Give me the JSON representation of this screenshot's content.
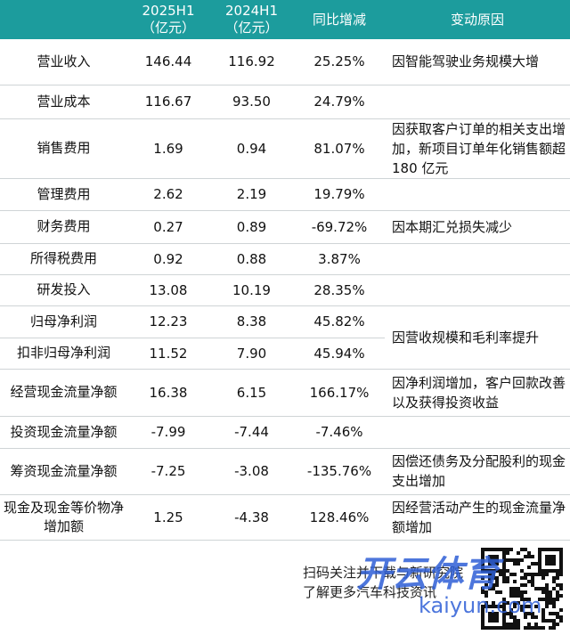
{
  "table": {
    "header": [
      [
        "2025H1",
        "（亿元）"
      ],
      [
        "2024H1",
        "（亿元）"
      ],
      [
        "同比增减"
      ],
      [
        "变动原因"
      ]
    ],
    "rows": [
      {
        "label": "营业收入",
        "h1_2025": "146.44",
        "h1_2024": "116.92",
        "yoy": "25.25%",
        "reason": "因智能驾驶业务规模大增"
      },
      {
        "label": "营业成本",
        "h1_2025": "116.67",
        "h1_2024": "93.50",
        "yoy": "24.79%"
      },
      {
        "label": "销售费用",
        "h1_2025": "1.69",
        "h1_2024": "0.94",
        "yoy": "81.07%",
        "reason": "因获取客户订单的相关支出增加，新项目订单年化销售额超180 亿元"
      },
      {
        "label": "管理费用",
        "h1_2025": "2.62",
        "h1_2024": "2.19",
        "yoy": "19.79%"
      },
      {
        "label": "财务费用",
        "h1_2025": "0.27",
        "h1_2024": "0.89",
        "yoy": "-69.72%",
        "reason": "因本期汇兑损失减少"
      },
      {
        "label": "所得税费用",
        "h1_2025": "0.92",
        "h1_2024": "0.88",
        "yoy": "3.87%"
      },
      {
        "label": "研发投入",
        "h1_2025": "13.08",
        "h1_2024": "10.19",
        "yoy": "28.35%"
      },
      {
        "label": "归母净利润",
        "h1_2025": "12.23",
        "h1_2024": "8.38",
        "yoy": "45.82%",
        "reason": "因营收规模和毛利率提升"
      },
      {
        "label": "扣非归母净利润",
        "h1_2025": "11.52",
        "h1_2024": "7.90",
        "yoy": "45.94%"
      },
      {
        "label": "经营现金流量净额",
        "h1_2025": "16.38",
        "h1_2024": "6.15",
        "yoy": "166.17%",
        "reason": "因净利润增加，客户回款改善以及获得投资收益"
      },
      {
        "label": "投资现金流量净额",
        "h1_2025": "-7.99",
        "h1_2024": "-7.44",
        "yoy": "-7.46%"
      },
      {
        "label": "筹资现金流量净额",
        "h1_2025": "-7.25",
        "h1_2024": "-3.08",
        "yoy": "-135.76%",
        "reason": "因偿还债务及分配股利的现金支出增加"
      },
      {
        "label": "现金及现金等价物净增加额",
        "h1_2025": "1.25",
        "h1_2024": "-4.38",
        "yoy": "128.46%",
        "reason": "因经营活动产生的现金流量净额增加"
      }
    ]
  },
  "footer": {
    "lines": [
      "扫码关注并下载与新研究院",
      "了解更多汽车科技资讯"
    ]
  },
  "watermark": {
    "brand": "开云体育",
    "site": "kaiyun.com"
  }
}
